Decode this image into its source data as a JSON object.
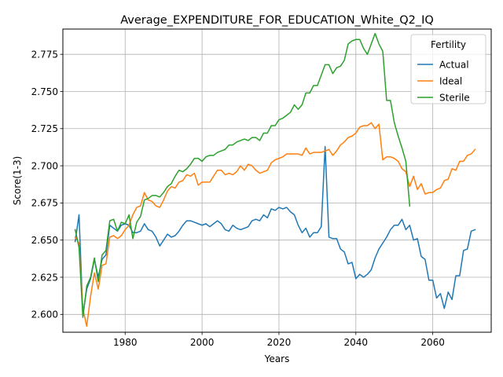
{
  "chart_data": {
    "type": "line",
    "title": "Average_EXPENDITURE_FOR_EDUCATION_White_Q2_IQ",
    "xlabel": "Years",
    "ylabel": "Score(1-3)",
    "xlim": [
      1963.8,
      2075.2
    ],
    "ylim": [
      2.588,
      2.792
    ],
    "xticks": [
      1980,
      2000,
      2020,
      2040,
      2060
    ],
    "yticks": [
      2.6,
      2.625,
      2.65,
      2.675,
      2.7,
      2.725,
      2.75,
      2.775
    ],
    "grid": true,
    "legend": {
      "title": "Fertility",
      "placement": "top-right"
    },
    "series": [
      {
        "name": "Actual",
        "color": "#1f77b4",
        "x_start": 1967,
        "x_step": 1,
        "values": [
          2.649,
          2.667,
          2.6,
          2.617,
          2.624,
          2.637,
          2.625,
          2.637,
          2.64,
          2.66,
          2.658,
          2.656,
          2.66,
          2.661,
          2.66,
          2.655,
          2.655,
          2.656,
          2.661,
          2.657,
          2.656,
          2.652,
          2.646,
          2.65,
          2.654,
          2.652,
          2.653,
          2.656,
          2.66,
          2.663,
          2.663,
          2.662,
          2.661,
          2.66,
          2.661,
          2.659,
          2.661,
          2.663,
          2.661,
          2.657,
          2.656,
          2.66,
          2.658,
          2.657,
          2.658,
          2.659,
          2.663,
          2.664,
          2.663,
          2.667,
          2.665,
          2.671,
          2.67,
          2.672,
          2.671,
          2.672,
          2.669,
          2.667,
          2.66,
          2.655,
          2.658,
          2.652,
          2.655,
          2.655,
          2.659,
          2.713,
          2.652,
          2.651,
          2.651,
          2.644,
          2.642,
          2.634,
          2.635,
          2.624,
          2.627,
          2.625,
          2.627,
          2.63,
          2.638,
          2.644,
          2.648,
          2.652,
          2.657,
          2.66,
          2.66,
          2.664,
          2.657,
          2.66,
          2.65,
          2.651,
          2.639,
          2.637,
          2.623,
          2.623,
          2.611,
          2.614,
          2.604,
          2.615,
          2.61,
          2.626,
          2.626,
          2.643,
          2.644,
          2.656,
          2.657
        ]
      },
      {
        "name": "Ideal",
        "color": "#ff7f0e",
        "x_start": 1967,
        "x_step": 1,
        "values": [
          2.652,
          2.648,
          2.604,
          2.592,
          2.612,
          2.628,
          2.617,
          2.633,
          2.634,
          2.652,
          2.653,
          2.651,
          2.653,
          2.657,
          2.66,
          2.667,
          2.672,
          2.673,
          2.682,
          2.677,
          2.676,
          2.673,
          2.672,
          2.677,
          2.683,
          2.686,
          2.685,
          2.689,
          2.69,
          2.694,
          2.693,
          2.695,
          2.687,
          2.689,
          2.689,
          2.689,
          2.693,
          2.697,
          2.697,
          2.694,
          2.695,
          2.694,
          2.696,
          2.7,
          2.697,
          2.701,
          2.7,
          2.697,
          2.695,
          2.696,
          2.697,
          2.702,
          2.704,
          2.705,
          2.706,
          2.708,
          2.708,
          2.708,
          2.708,
          2.707,
          2.712,
          2.708,
          2.709,
          2.709,
          2.709,
          2.71,
          2.711,
          2.707,
          2.71,
          2.714,
          2.716,
          2.719,
          2.72,
          2.722,
          2.726,
          2.727,
          2.727,
          2.729,
          2.725,
          2.728,
          2.704,
          2.706,
          2.706,
          2.705,
          2.703,
          2.698,
          2.696,
          2.686,
          2.693,
          2.684,
          2.688,
          2.681,
          2.682,
          2.682,
          2.684,
          2.685,
          2.69,
          2.691,
          2.698,
          2.697,
          2.703,
          2.703,
          2.707,
          2.708,
          2.711
        ]
      },
      {
        "name": "Sterile",
        "color": "#2ca02c",
        "x_start": 1967,
        "x_step": 1,
        "values": [
          2.657,
          2.645,
          2.598,
          2.619,
          2.625,
          2.638,
          2.622,
          2.64,
          2.643,
          2.663,
          2.664,
          2.656,
          2.662,
          2.661,
          2.667,
          2.651,
          2.662,
          2.666,
          2.677,
          2.678,
          2.68,
          2.68,
          2.679,
          2.682,
          2.686,
          2.688,
          2.693,
          2.697,
          2.696,
          2.698,
          2.701,
          2.705,
          2.705,
          2.703,
          2.706,
          2.707,
          2.707,
          2.709,
          2.71,
          2.711,
          2.714,
          2.714,
          2.716,
          2.717,
          2.718,
          2.717,
          2.719,
          2.719,
          2.717,
          2.722,
          2.722,
          2.727,
          2.727,
          2.731,
          2.732,
          2.734,
          2.736,
          2.741,
          2.738,
          2.741,
          2.749,
          2.749,
          2.754,
          2.754,
          2.761,
          2.768,
          2.768,
          2.762,
          2.766,
          2.767,
          2.771,
          2.782,
          2.784,
          2.785,
          2.785,
          2.779,
          2.775,
          2.782,
          2.789,
          2.782,
          2.777,
          2.744,
          2.744,
          2.729,
          2.72,
          2.712,
          2.703,
          2.673
        ]
      }
    ]
  }
}
